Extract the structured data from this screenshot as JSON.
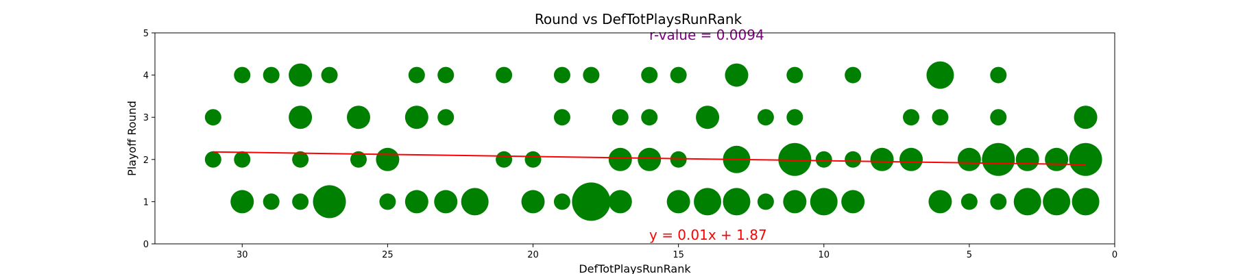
{
  "chart_data": {
    "type": "scatter",
    "title": "Round vs DefTotPlaysRunRank",
    "xlabel": "DefTotPlaysRunRank",
    "ylabel": "Playoff Round",
    "xlim": [
      33,
      0
    ],
    "ylim": [
      0,
      5
    ],
    "x_ticks": [
      30,
      25,
      20,
      15,
      10,
      5,
      0
    ],
    "y_ticks": [
      0,
      1,
      2,
      3,
      4,
      5
    ],
    "grid": false,
    "marker_color": "#008000",
    "trend_color": "#ff0000",
    "annotation_color": "#800080",
    "points": [
      {
        "x": 30,
        "y": 4,
        "size": 1
      },
      {
        "x": 29,
        "y": 4,
        "size": 1
      },
      {
        "x": 28,
        "y": 4,
        "size": 2
      },
      {
        "x": 27,
        "y": 4,
        "size": 1
      },
      {
        "x": 24,
        "y": 4,
        "size": 1
      },
      {
        "x": 23,
        "y": 4,
        "size": 1
      },
      {
        "x": 21,
        "y": 4,
        "size": 1
      },
      {
        "x": 19,
        "y": 4,
        "size": 1
      },
      {
        "x": 18,
        "y": 4,
        "size": 1
      },
      {
        "x": 16,
        "y": 4,
        "size": 1
      },
      {
        "x": 15,
        "y": 4,
        "size": 1
      },
      {
        "x": 13,
        "y": 4,
        "size": 2
      },
      {
        "x": 11,
        "y": 4,
        "size": 1
      },
      {
        "x": 9,
        "y": 4,
        "size": 1
      },
      {
        "x": 6,
        "y": 4,
        "size": 3
      },
      {
        "x": 4,
        "y": 4,
        "size": 1
      },
      {
        "x": 31,
        "y": 3,
        "size": 1
      },
      {
        "x": 28,
        "y": 3,
        "size": 2
      },
      {
        "x": 26,
        "y": 3,
        "size": 2
      },
      {
        "x": 24,
        "y": 3,
        "size": 2
      },
      {
        "x": 23,
        "y": 3,
        "size": 1
      },
      {
        "x": 19,
        "y": 3,
        "size": 1
      },
      {
        "x": 17,
        "y": 3,
        "size": 1
      },
      {
        "x": 16,
        "y": 3,
        "size": 1
      },
      {
        "x": 14,
        "y": 3,
        "size": 2
      },
      {
        "x": 12,
        "y": 3,
        "size": 1
      },
      {
        "x": 11,
        "y": 3,
        "size": 1
      },
      {
        "x": 7,
        "y": 3,
        "size": 1
      },
      {
        "x": 6,
        "y": 3,
        "size": 1
      },
      {
        "x": 4,
        "y": 3,
        "size": 1
      },
      {
        "x": 1,
        "y": 3,
        "size": 2
      },
      {
        "x": 31,
        "y": 2,
        "size": 1
      },
      {
        "x": 30,
        "y": 2,
        "size": 1
      },
      {
        "x": 28,
        "y": 2,
        "size": 1
      },
      {
        "x": 26,
        "y": 2,
        "size": 1
      },
      {
        "x": 25,
        "y": 2,
        "size": 2
      },
      {
        "x": 21,
        "y": 2,
        "size": 1
      },
      {
        "x": 20,
        "y": 2,
        "size": 1
      },
      {
        "x": 17,
        "y": 2,
        "size": 2
      },
      {
        "x": 16,
        "y": 2,
        "size": 2
      },
      {
        "x": 15,
        "y": 2,
        "size": 1
      },
      {
        "x": 13,
        "y": 2,
        "size": 3
      },
      {
        "x": 11,
        "y": 2,
        "size": 4
      },
      {
        "x": 10,
        "y": 2,
        "size": 1
      },
      {
        "x": 9,
        "y": 2,
        "size": 1
      },
      {
        "x": 8,
        "y": 2,
        "size": 2
      },
      {
        "x": 7,
        "y": 2,
        "size": 2
      },
      {
        "x": 5,
        "y": 2,
        "size": 2
      },
      {
        "x": 4,
        "y": 2,
        "size": 4
      },
      {
        "x": 3,
        "y": 2,
        "size": 2
      },
      {
        "x": 2,
        "y": 2,
        "size": 2
      },
      {
        "x": 1,
        "y": 2,
        "size": 4
      },
      {
        "x": 30,
        "y": 1,
        "size": 2
      },
      {
        "x": 29,
        "y": 1,
        "size": 1
      },
      {
        "x": 28,
        "y": 1,
        "size": 1
      },
      {
        "x": 27,
        "y": 1,
        "size": 4
      },
      {
        "x": 25,
        "y": 1,
        "size": 1
      },
      {
        "x": 24,
        "y": 1,
        "size": 2
      },
      {
        "x": 23,
        "y": 1,
        "size": 2
      },
      {
        "x": 22,
        "y": 1,
        "size": 3
      },
      {
        "x": 20,
        "y": 1,
        "size": 2
      },
      {
        "x": 19,
        "y": 1,
        "size": 1
      },
      {
        "x": 18,
        "y": 1,
        "size": 5
      },
      {
        "x": 17,
        "y": 1,
        "size": 2
      },
      {
        "x": 15,
        "y": 1,
        "size": 2
      },
      {
        "x": 14,
        "y": 1,
        "size": 3
      },
      {
        "x": 13,
        "y": 1,
        "size": 3
      },
      {
        "x": 12,
        "y": 1,
        "size": 1
      },
      {
        "x": 11,
        "y": 1,
        "size": 2
      },
      {
        "x": 10,
        "y": 1,
        "size": 3
      },
      {
        "x": 9,
        "y": 1,
        "size": 2
      },
      {
        "x": 6,
        "y": 1,
        "size": 2
      },
      {
        "x": 5,
        "y": 1,
        "size": 1
      },
      {
        "x": 4,
        "y": 1,
        "size": 1
      },
      {
        "x": 3,
        "y": 1,
        "size": 3
      },
      {
        "x": 2,
        "y": 1,
        "size": 3
      },
      {
        "x": 1,
        "y": 1,
        "size": 3
      }
    ],
    "trendline": {
      "slope": 0.01,
      "intercept": 1.87,
      "x_range": [
        31,
        1
      ]
    },
    "annotations": {
      "r_value": "r-value = 0.0094",
      "equation": "y = 0.01x + 1.87"
    }
  }
}
